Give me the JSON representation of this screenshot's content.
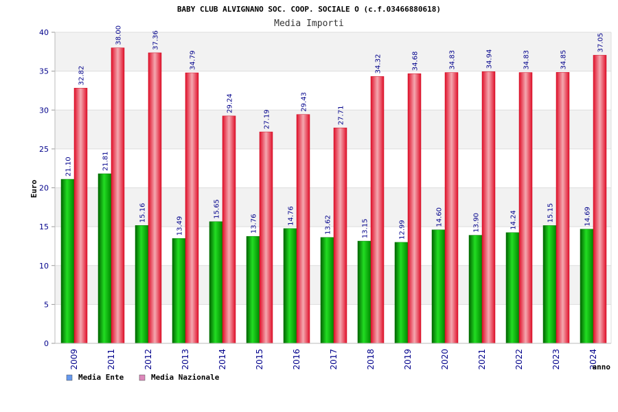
{
  "chart_data": {
    "type": "bar",
    "title": "BABY CLUB ALVIGNANO SOC. COOP. SOCIALE O (c.f.03466880618)",
    "subtitle": "Media Importi",
    "xlabel": "anno",
    "ylabel": "Euro",
    "ylim": [
      0,
      40
    ],
    "yticks": [
      "0",
      "5",
      "10",
      "15",
      "20",
      "25",
      "30",
      "35",
      "40"
    ],
    "grid": true,
    "legend_position": "bottom-left",
    "categories": [
      "2009",
      "2011",
      "2012",
      "2013",
      "2014",
      "2015",
      "2016",
      "2017",
      "2018",
      "2019",
      "2020",
      "2021",
      "2022",
      "2023",
      "2024"
    ],
    "series": [
      {
        "name": "Media Ente",
        "color": "#00a000",
        "legend_color": "#6699ee",
        "values": [
          21.1,
          21.81,
          15.16,
          13.49,
          15.65,
          13.76,
          14.76,
          13.62,
          13.15,
          12.99,
          14.6,
          13.9,
          14.24,
          15.15,
          14.69
        ],
        "labels": [
          "21.10",
          "21.81",
          "15.16",
          "13.49",
          "15.65",
          "13.76",
          "14.76",
          "13.62",
          "13.15",
          "12.99",
          "14.60",
          "13.90",
          "14.24",
          "15.15",
          "14.69"
        ]
      },
      {
        "name": "Media Nazionale",
        "color": "#e8172b",
        "legend_color": "#dd88bb",
        "values": [
          32.82,
          38.0,
          37.36,
          34.79,
          29.24,
          27.19,
          29.43,
          27.71,
          34.32,
          34.68,
          34.83,
          34.94,
          34.83,
          34.85,
          37.05
        ],
        "labels": [
          "32.82",
          "38.00",
          "37.36",
          "34.79",
          "29.24",
          "27.19",
          "29.43",
          "27.71",
          "34.32",
          "34.68",
          "34.83",
          "34.94",
          "34.83",
          "34.85",
          "37.05"
        ]
      }
    ]
  }
}
